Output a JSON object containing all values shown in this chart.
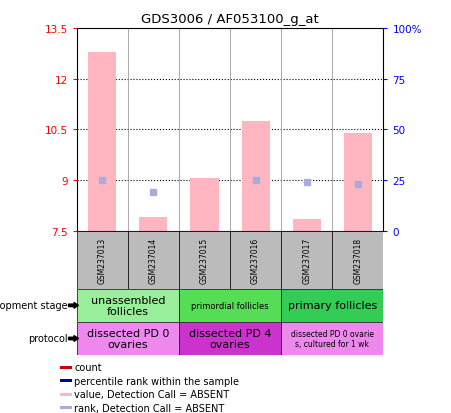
{
  "title": "GDS3006 / AF053100_g_at",
  "samples": [
    "GSM237013",
    "GSM237014",
    "GSM237015",
    "GSM237016",
    "GSM237017",
    "GSM237018"
  ],
  "ylim_left": [
    7.5,
    13.5
  ],
  "ylim_right": [
    0,
    100
  ],
  "yticks_left": [
    7.5,
    9.0,
    10.5,
    12.0,
    13.5
  ],
  "ytick_labels_left": [
    "7.5",
    "9",
    "10.5",
    "12",
    "13.5"
  ],
  "yticks_right": [
    0,
    25,
    50,
    75,
    100
  ],
  "ytick_labels_right": [
    "0",
    "25",
    "50",
    "75",
    "100%"
  ],
  "pink_bar_values": [
    12.8,
    7.9,
    9.05,
    10.75,
    7.85,
    10.4
  ],
  "blue_square_left_y": [
    9.0,
    8.65,
    null,
    9.0,
    8.95,
    8.9
  ],
  "pink_bar_color": "#FFB6C1",
  "blue_square_color": "#AAAADD",
  "dotted_line_y": [
    9.0,
    10.5,
    12.0
  ],
  "dev_stage_groups": [
    {
      "label": "unassembled\nfollicles",
      "cols": [
        0,
        1
      ],
      "color": "#99EE99",
      "fontsize": 8
    },
    {
      "label": "primordial follicles",
      "cols": [
        2,
        3
      ],
      "color": "#55DD55",
      "fontsize": 6
    },
    {
      "label": "primary follicles",
      "cols": [
        4,
        5
      ],
      "color": "#33CC55",
      "fontsize": 8
    }
  ],
  "protocol_groups": [
    {
      "label": "dissected PD 0\novaries",
      "cols": [
        0,
        1
      ],
      "color": "#EE88EE",
      "fontsize": 8
    },
    {
      "label": "dissected PD 4\novaries",
      "cols": [
        2,
        3
      ],
      "color": "#CC33CC",
      "fontsize": 8
    },
    {
      "label": "dissected PD 0 ovarie\ns, cultured for 1 wk",
      "cols": [
        4,
        5
      ],
      "color": "#EE88EE",
      "fontsize": 5.5
    }
  ],
  "legend_items": [
    {
      "label": "count",
      "color": "#CC0000"
    },
    {
      "label": "percentile rank within the sample",
      "color": "#000099"
    },
    {
      "label": "value, Detection Call = ABSENT",
      "color": "#FFB6C1"
    },
    {
      "label": "rank, Detection Call = ABSENT",
      "color": "#AAAADD"
    }
  ],
  "dev_stage_label": "development stage",
  "protocol_label": "protocol",
  "gray_color": "#BBBBBB",
  "bar_width": 0.55
}
